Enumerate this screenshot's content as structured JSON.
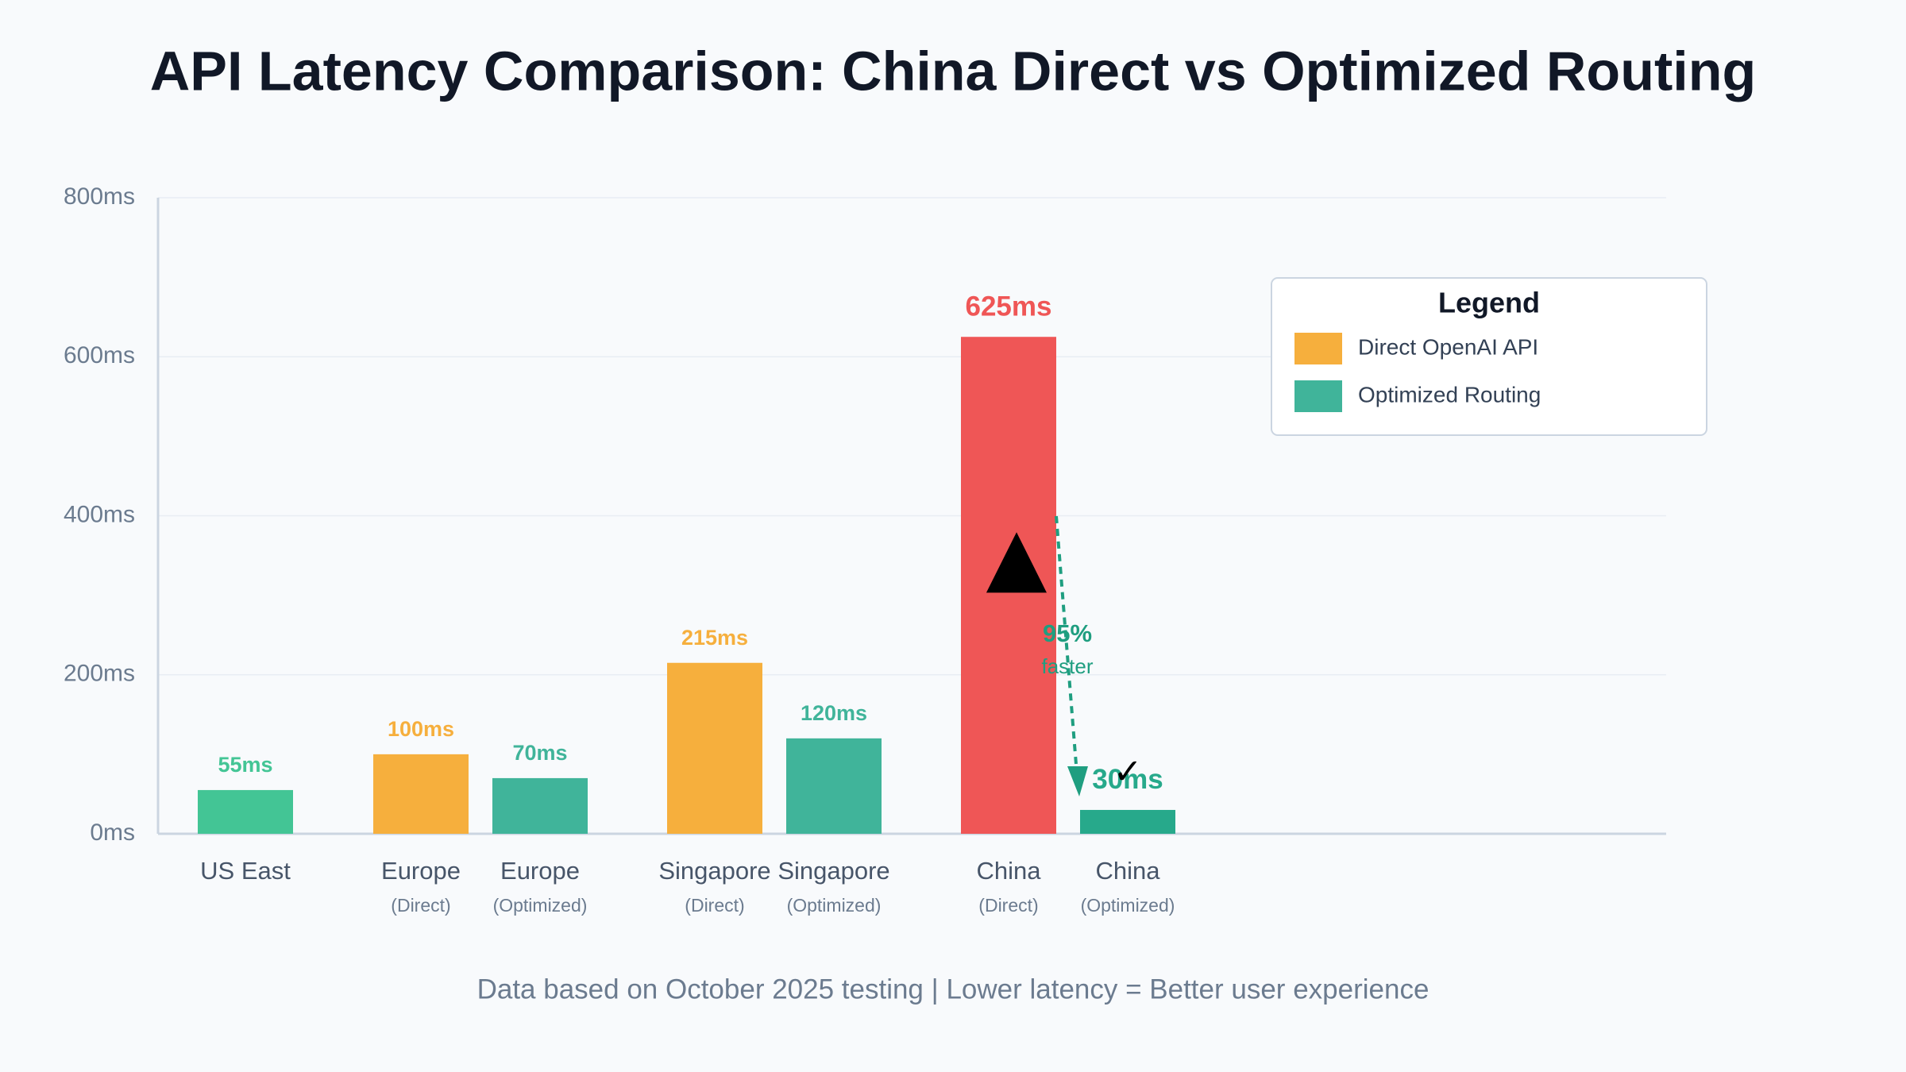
{
  "chart_data": {
    "type": "bar",
    "title": "API Latency Comparison: China Direct vs Optimized Routing",
    "categories": [
      "US East",
      "Europe",
      "Europe",
      "Singapore",
      "Singapore",
      "China",
      "China"
    ],
    "category_notes": [
      null,
      "(Direct)",
      "(Optimized)",
      "(Direct)",
      "(Optimized)",
      "(Direct)",
      "(Optimized)"
    ],
    "values": [
      55,
      100,
      70,
      215,
      120,
      625,
      30
    ],
    "value_labels": [
      "55ms",
      "100ms",
      "70ms",
      "215ms",
      "120ms",
      "625ms",
      "30ms"
    ],
    "colors": [
      "#43c595",
      "#f6af3d",
      "#40b49a",
      "#f6af3d",
      "#40b49a",
      "#ef5656",
      "#27a98b"
    ],
    "ylim": [
      0,
      800
    ],
    "yticks": [
      {
        "value": 0,
        "label": "0ms"
      },
      {
        "value": 200,
        "label": "200ms"
      },
      {
        "value": 400,
        "label": "400ms"
      },
      {
        "value": 600,
        "label": "600ms"
      },
      {
        "value": 800,
        "label": "800ms"
      }
    ],
    "grid": true,
    "legend": {
      "title": "Legend",
      "position": "upper right",
      "items": [
        {
          "name": "Direct OpenAI API",
          "color": "#f6af3d"
        },
        {
          "name": "Optimized Routing",
          "color": "#40b49a"
        }
      ]
    },
    "annotations": {
      "improvement": "95%",
      "improvement_note": "faster",
      "warning_icon": "▲",
      "check_icon": "✓"
    },
    "footer": "Data based on October 2025 testing | Lower latency = Better user experience"
  }
}
